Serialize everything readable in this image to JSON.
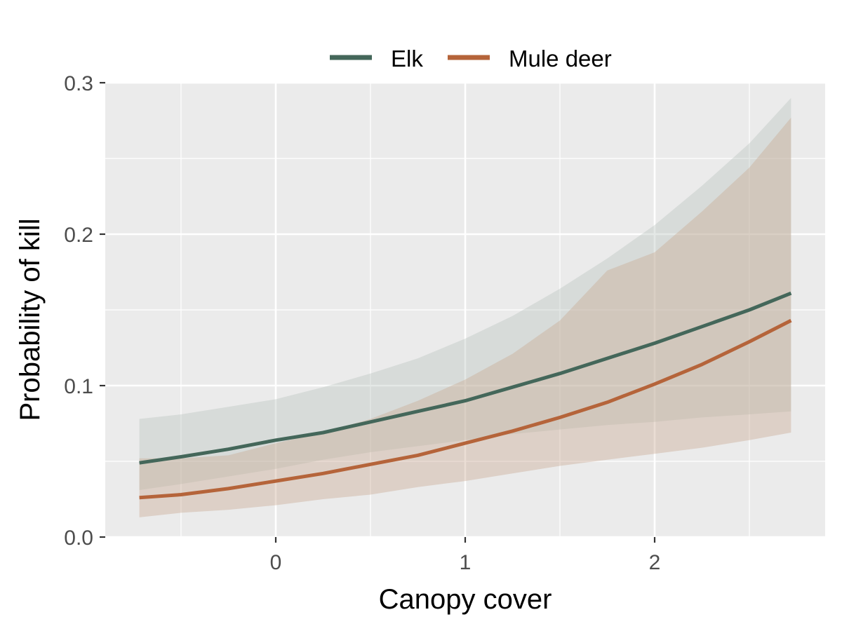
{
  "chart_data": {
    "type": "line",
    "xlabel": "Canopy cover",
    "ylabel": "Probability of kill",
    "xlim": [
      -0.9,
      2.9
    ],
    "ylim": [
      0,
      0.3
    ],
    "x_ticks": [
      0,
      1,
      2
    ],
    "x_tick_labels": [
      "0",
      "1",
      "2"
    ],
    "y_ticks": [
      0,
      0.1,
      0.2,
      0.3
    ],
    "y_tick_labels": [
      "0.0",
      "0.1",
      "0.2",
      "0.3"
    ],
    "grid": true,
    "legend_position": "top",
    "x": [
      -0.72,
      -0.5,
      -0.25,
      0,
      0.25,
      0.5,
      0.75,
      1,
      1.25,
      1.5,
      1.75,
      2,
      2.25,
      2.5,
      2.72
    ],
    "series": [
      {
        "name": "Elk",
        "color": "#44675a",
        "values": [
          0.049,
          0.053,
          0.058,
          0.064,
          0.069,
          0.076,
          0.083,
          0.09,
          0.099,
          0.108,
          0.118,
          0.128,
          0.139,
          0.15,
          0.161
        ],
        "lower": [
          0.031,
          0.035,
          0.04,
          0.045,
          0.051,
          0.056,
          0.06,
          0.064,
          0.068,
          0.071,
          0.074,
          0.076,
          0.079,
          0.081,
          0.083
        ],
        "upper": [
          0.078,
          0.081,
          0.086,
          0.091,
          0.099,
          0.108,
          0.118,
          0.131,
          0.146,
          0.164,
          0.184,
          0.206,
          0.232,
          0.26,
          0.29
        ]
      },
      {
        "name": "Mule deer",
        "color": "#b5643a",
        "values": [
          0.026,
          0.028,
          0.032,
          0.037,
          0.042,
          0.048,
          0.054,
          0.062,
          0.07,
          0.079,
          0.089,
          0.101,
          0.114,
          0.129,
          0.143
        ],
        "lower": [
          0.013,
          0.016,
          0.018,
          0.021,
          0.025,
          0.028,
          0.033,
          0.037,
          0.042,
          0.047,
          0.051,
          0.055,
          0.059,
          0.064,
          0.069
        ],
        "upper": [
          0.052,
          0.052,
          0.054,
          0.062,
          0.069,
          0.078,
          0.09,
          0.104,
          0.121,
          0.143,
          0.176,
          0.188,
          0.215,
          0.244,
          0.277
        ]
      }
    ]
  }
}
